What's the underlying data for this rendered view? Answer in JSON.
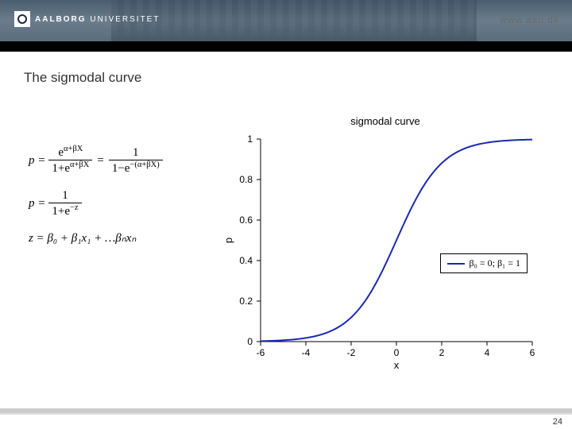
{
  "header": {
    "logo_text_bold": "AALBORG",
    "logo_text_light": "UNIVERSITET",
    "url": "www.aau.dk"
  },
  "slide": {
    "title": "The sigmodal curve",
    "page_number": "24"
  },
  "formulas": {
    "eq1_lhs": "p =",
    "eq1_num1": "e",
    "eq1_exp1": "α+βX",
    "eq1_den1a": "1+e",
    "eq1_den1b": "α+βX",
    "eq1_eq": "=",
    "eq1_num2": "1",
    "eq1_den2a": "1−e",
    "eq1_den2b": "−(α+βX)",
    "eq2_lhs": "p =",
    "eq2_num": "1",
    "eq2_den_a": "1+e",
    "eq2_den_b": "−z",
    "eq3": "z = β₀ + β₁x₁ + …βₙxₙ"
  },
  "chart": {
    "title": "sigmodal curve",
    "xlabel": "x",
    "ylabel": "p",
    "xlim": [
      -6,
      6
    ],
    "ylim": [
      0,
      1
    ],
    "xticks": [
      -6,
      -4,
      -2,
      0,
      2,
      4,
      6
    ],
    "yticks": [
      0,
      0.2,
      0.4,
      0.6,
      0.8,
      1
    ],
    "line_color": "#1a2ab4",
    "line_width": 2,
    "axis_color": "#000000",
    "beta0": 0,
    "beta1": 1,
    "legend_text": "β₀ = 0; β₁ = 1"
  }
}
